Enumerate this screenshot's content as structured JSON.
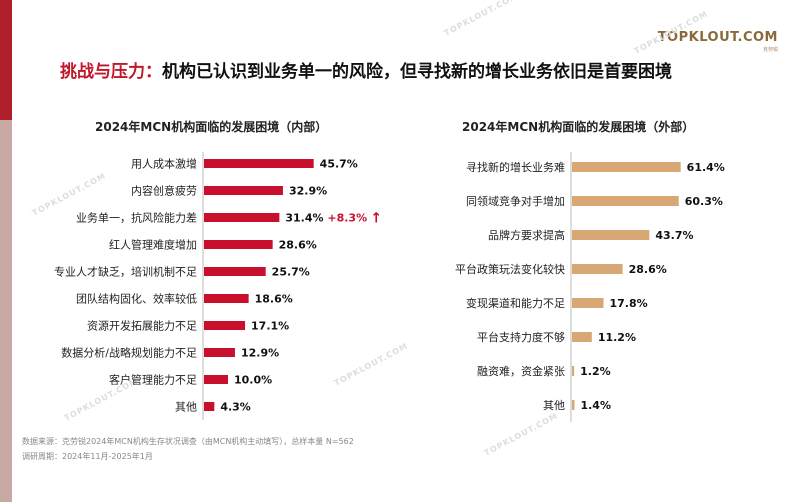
{
  "header": {
    "tag": "挑战与压力：",
    "title": "机构已认识到业务单一的风险，但寻找新的增长业务依旧是首要困境",
    "logo": "TOPKLOUT.COM",
    "logo_sub": "克劳锐"
  },
  "watermark": "TOPKLOUT.COM",
  "colors": {
    "internal_bar": "#c8102e",
    "external_bar": "#d8a874",
    "accent": "#b0202a",
    "annotation": "#c8102e"
  },
  "chart_data": [
    {
      "type": "bar",
      "orientation": "horizontal",
      "title": "2024年MCN机构面临的发展困境（内部）",
      "categories": [
        "用人成本激增",
        "内容创意疲劳",
        "业务单一，抗风险能力差",
        "红人管理难度增加",
        "专业人才缺乏，培训机制不足",
        "团队结构固化、效率较低",
        "资源开发拓展能力不足",
        "数据分析/战略规划能力不足",
        "客户管理能力不足",
        "其他"
      ],
      "values": [
        45.7,
        32.9,
        31.4,
        28.6,
        25.7,
        18.6,
        17.1,
        12.9,
        10.0,
        4.3
      ],
      "value_labels": [
        "45.7%",
        "32.9%",
        "31.4%",
        "28.6%",
        "25.7%",
        "18.6%",
        "17.1%",
        "12.9%",
        "10.0%",
        "4.3%"
      ],
      "annotations": [
        {
          "category": "业务单一，抗风险能力差",
          "text": "+8.3%",
          "arrow": "up"
        }
      ]
    },
    {
      "type": "bar",
      "orientation": "horizontal",
      "title": "2024年MCN机构面临的发展困境（外部）",
      "categories": [
        "寻找新的增长业务难",
        "同领域竞争对手增加",
        "品牌方要求提高",
        "平台政策玩法变化较快",
        "变现渠道和能力不足",
        "平台支持力度不够",
        "融资难，资金紧张",
        "其他"
      ],
      "values": [
        61.4,
        60.3,
        43.7,
        28.6,
        17.8,
        11.2,
        1.2,
        1.4
      ],
      "value_labels": [
        "61.4%",
        "60.3%",
        "43.7%",
        "28.6%",
        "17.8%",
        "11.2%",
        "1.2%",
        "1.4%"
      ]
    }
  ],
  "footer": {
    "source": "数据来源：克劳锐2024年MCN机构生存状况调查（由MCN机构主动填写），总样本量 N=562",
    "period": "调研周期：2024年11月-2025年1月"
  }
}
